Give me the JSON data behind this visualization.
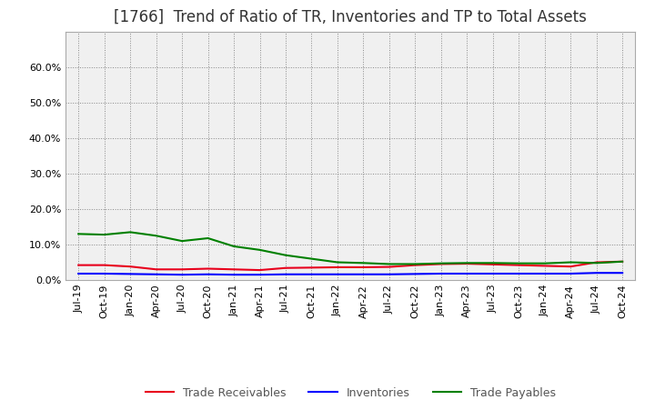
{
  "title": "[1766]  Trend of Ratio of TR, Inventories and TP to Total Assets",
  "x_labels": [
    "Jul-19",
    "Oct-19",
    "Jan-20",
    "Apr-20",
    "Jul-20",
    "Oct-20",
    "Jan-21",
    "Apr-21",
    "Jul-21",
    "Oct-21",
    "Jan-22",
    "Apr-22",
    "Jul-22",
    "Oct-22",
    "Jan-23",
    "Apr-23",
    "Jul-23",
    "Oct-23",
    "Jan-24",
    "Apr-24",
    "Jul-24",
    "Oct-24"
  ],
  "trade_receivables": [
    0.042,
    0.042,
    0.038,
    0.03,
    0.03,
    0.032,
    0.03,
    0.028,
    0.034,
    0.035,
    0.036,
    0.036,
    0.037,
    0.042,
    0.045,
    0.046,
    0.044,
    0.042,
    0.04,
    0.038,
    0.05,
    0.052
  ],
  "inventories": [
    0.018,
    0.018,
    0.017,
    0.016,
    0.015,
    0.016,
    0.015,
    0.015,
    0.016,
    0.016,
    0.016,
    0.016,
    0.016,
    0.017,
    0.018,
    0.018,
    0.018,
    0.018,
    0.018,
    0.018,
    0.02,
    0.02
  ],
  "trade_payables": [
    0.13,
    0.128,
    0.135,
    0.125,
    0.11,
    0.118,
    0.095,
    0.085,
    0.07,
    0.06,
    0.05,
    0.048,
    0.045,
    0.045,
    0.047,
    0.048,
    0.048,
    0.047,
    0.047,
    0.05,
    0.048,
    0.052
  ],
  "ylim": [
    0.0,
    0.7
  ],
  "yticks": [
    0.0,
    0.1,
    0.2,
    0.3,
    0.4,
    0.5,
    0.6
  ],
  "color_tr": "#e8001c",
  "color_inv": "#0000ff",
  "color_tp": "#008000",
  "bg_color": "#ffffff",
  "plot_bg_color": "#f0f0f0",
  "grid_color": "#888888",
  "legend_labels": [
    "Trade Receivables",
    "Inventories",
    "Trade Payables"
  ],
  "title_fontsize": 12,
  "tick_fontsize": 8,
  "legend_fontsize": 9
}
